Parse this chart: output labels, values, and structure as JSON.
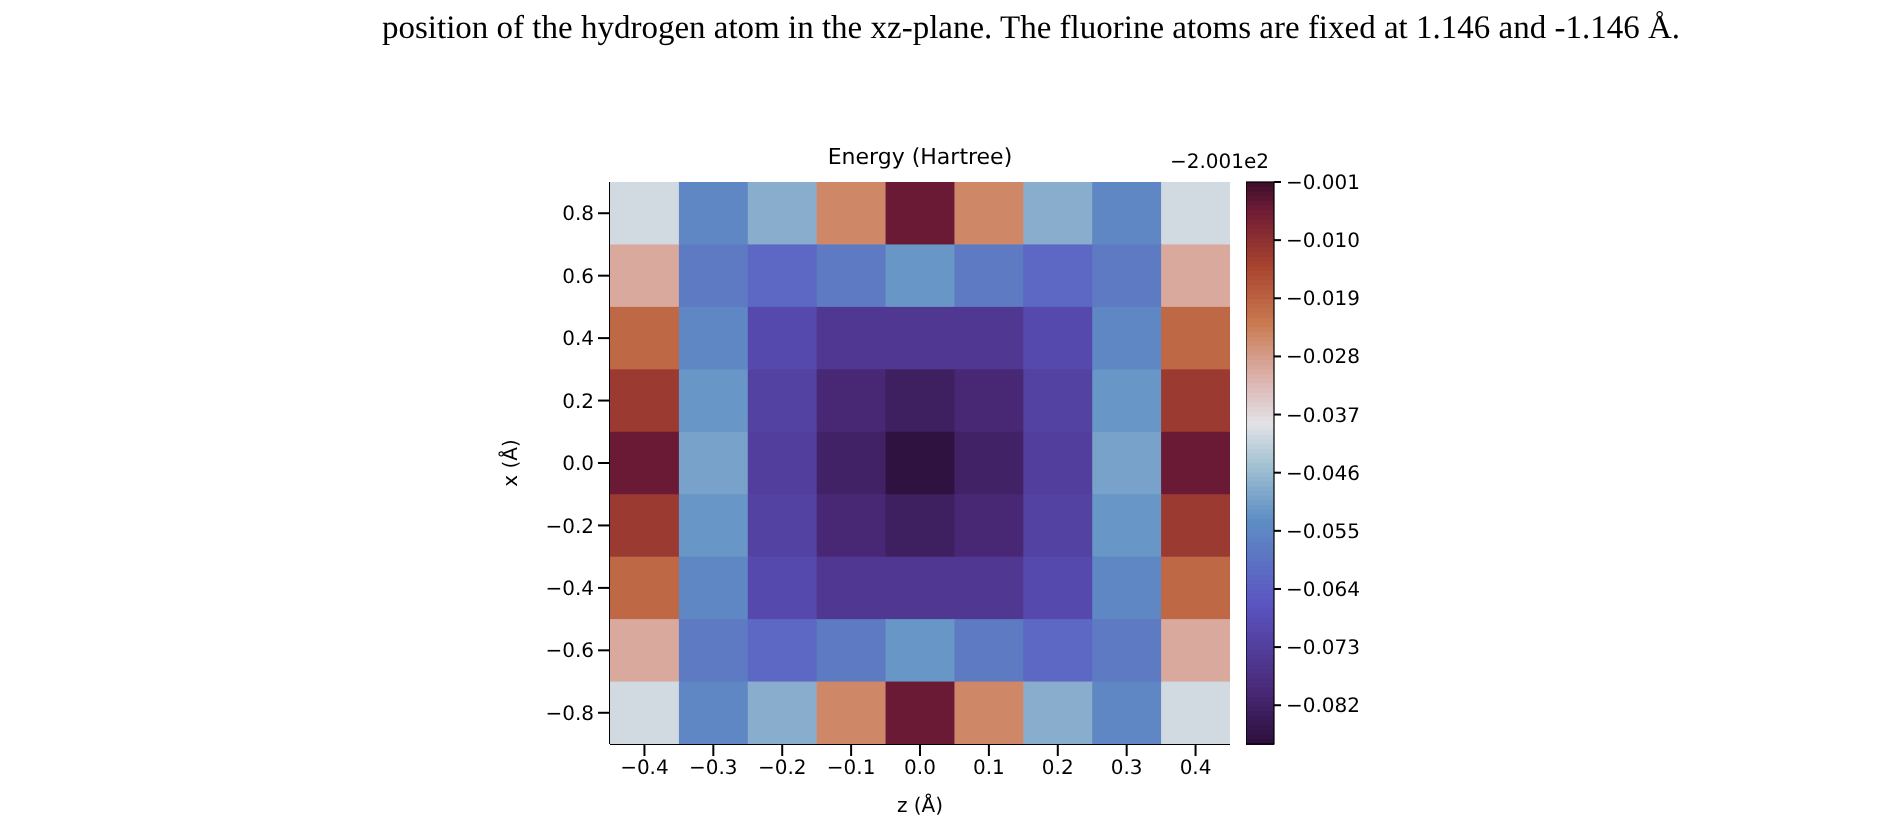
{
  "chart_data": {
    "type": "heatmap",
    "title": "Energy (Hartree)",
    "xlabel": "z (Å)",
    "ylabel": "x (Å)",
    "annotations": [
      "position of the hydrogen atom in the xz-plane. The fluorine atoms are fixed at 1.146 and -1.146 Å.",
      "−2.001e2"
    ],
    "categories": [
      "−0.4",
      "−0.3",
      "−0.2",
      "−0.1",
      "0.0",
      "0.1",
      "0.2",
      "0.3",
      "0.4"
    ],
    "y_categories": [
      "0.8",
      "0.6",
      "0.4",
      "0.2",
      "0.0",
      "−0.2",
      "−0.4",
      "−0.6",
      "−0.8"
    ],
    "cells": [
      [
        -0.04,
        -0.055,
        -0.048,
        -0.025,
        -0.005,
        -0.025,
        -0.048,
        -0.055,
        -0.04
      ],
      [
        -0.03,
        -0.058,
        -0.062,
        -0.058,
        -0.052,
        -0.058,
        -0.062,
        -0.058,
        -0.03
      ],
      [
        -0.02,
        -0.055,
        -0.07,
        -0.075,
        -0.075,
        -0.075,
        -0.07,
        -0.055,
        -0.02
      ],
      [
        -0.012,
        -0.052,
        -0.072,
        -0.08,
        -0.083,
        -0.08,
        -0.072,
        -0.052,
        -0.012
      ],
      [
        -0.005,
        -0.05,
        -0.073,
        -0.082,
        -0.087,
        -0.082,
        -0.073,
        -0.05,
        -0.005
      ],
      [
        -0.012,
        -0.052,
        -0.072,
        -0.08,
        -0.083,
        -0.08,
        -0.072,
        -0.052,
        -0.012
      ],
      [
        -0.02,
        -0.055,
        -0.07,
        -0.075,
        -0.075,
        -0.075,
        -0.07,
        -0.055,
        -0.02
      ],
      [
        -0.03,
        -0.058,
        -0.062,
        -0.058,
        -0.052,
        -0.058,
        -0.062,
        -0.058,
        -0.03
      ],
      [
        -0.04,
        -0.055,
        -0.048,
        -0.025,
        -0.005,
        -0.025,
        -0.048,
        -0.055,
        -0.04
      ]
    ],
    "clim": [
      -0.088,
      -0.001
    ],
    "cticks": [
      -0.001,
      {
        "value": -0.01,
        "label": "−0.010"
      },
      -0.019,
      -0.028,
      -0.037,
      -0.046,
      -0.055,
      -0.064,
      -0.073,
      -0.082
    ]
  }
}
